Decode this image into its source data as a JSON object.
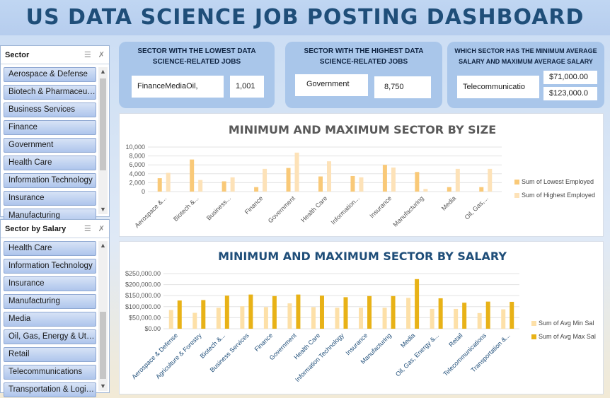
{
  "title": "US DATA SCIENCE JOB POSTING DASHBOARD",
  "slicer_sector": {
    "title": "Sector",
    "icons": [
      "multi-select-icon",
      "clear-filter-icon"
    ],
    "items": [
      "Aerospace & Defense",
      "Biotech & Pharmaceuticals",
      "Business Services",
      "Finance",
      "Government",
      "Health Care",
      "Information Technology",
      "Insurance",
      "Manufacturing"
    ]
  },
  "slicer_salary": {
    "title": "Sector by Salary",
    "icons": [
      "multi-select-icon",
      "clear-filter-icon"
    ],
    "items": [
      "Health Care",
      "Information Technology",
      "Insurance",
      "Manufacturing",
      "Media",
      "Oil, Gas, Energy & Utilities",
      "Retail",
      "Telecommunications",
      "Transportation & Logistics"
    ]
  },
  "kpi_lowest": {
    "title_line1": "SECTOR WITH THE LOWEST DATA",
    "title_line2": "SCIENCE-RELATED JOBS",
    "sector": "FinanceMediaOil,",
    "value": "1,001"
  },
  "kpi_highest": {
    "title_line1": "SECTOR WITH THE HIGHEST DATA",
    "title_line2": "SCIENCE-RELATED JOBS",
    "sector": "Government",
    "value": "8,750"
  },
  "kpi_salary": {
    "title_line1": "WHICH SECTOR HAS THE MINIMUM  AVERAGE",
    "title_line2": "SALARY  AND MAXIMUM  AVERAGE SALARY",
    "sector": "Telecommunicatio",
    "min_value": "$71,000.00",
    "max_value": "$123,000.0"
  },
  "chart_data": [
    {
      "type": "bar",
      "title": "MINIMUM AND MAXIMUM SECTOR BY SIZE",
      "categories": [
        "Aerospace &...",
        "Biotech &...",
        "Business...",
        "Finance",
        "Government",
        "Health Care",
        "Information...",
        "Insurance",
        "Manufacturing",
        "Media",
        "Oil, Gas,..."
      ],
      "series": [
        {
          "name": "Sum of Lowest Employed",
          "color": "#f9c978",
          "values": [
            3000,
            7200,
            2300,
            1000,
            5300,
            3400,
            3500,
            6000,
            4400,
            1000,
            1000
          ]
        },
        {
          "name": "Sum of Highest Employed",
          "color": "#fde2b8",
          "values": [
            4200,
            2600,
            3200,
            5100,
            8750,
            6800,
            3200,
            5400,
            600,
            5100,
            5100
          ]
        }
      ],
      "ylim": [
        0,
        10000
      ],
      "yticks": [
        "0",
        "2,000",
        "4,000",
        "6,000",
        "8,000",
        "10,000"
      ],
      "legend": "right"
    },
    {
      "type": "bar",
      "title": "MINIMUM AND MAXIMUM SECTOR BY SALARY",
      "categories": [
        "Aerospace & Defense",
        "Agriculture & Forestry",
        "Biotech &...",
        "Business Services",
        "Finance",
        "Government",
        "Health Care",
        "Information Technology",
        "Insurance",
        "Manufacturing",
        "Media",
        "Oil, Gas, Energy &...",
        "Retail",
        "Telecommunications",
        "Transportation &..."
      ],
      "series": [
        {
          "name": "Sum of Avg Min Sal",
          "color": "#fde0a8",
          "values": [
            85000,
            72000,
            95000,
            102000,
            98000,
            115000,
            98000,
            95000,
            95000,
            95000,
            140000,
            90000,
            90000,
            71000,
            88000
          ]
        },
        {
          "name": "Sum of Avg Max Sal",
          "color": "#e8b217",
          "values": [
            128000,
            130000,
            150000,
            155000,
            148000,
            155000,
            150000,
            143000,
            148000,
            148000,
            225000,
            138000,
            118000,
            123000,
            122000
          ]
        }
      ],
      "ylim": [
        0,
        250000
      ],
      "yticks": [
        "$0.00",
        "$50,000.00",
        "$100,000.00",
        "$150,000.00",
        "$200,000.00",
        "$250,000.00"
      ],
      "legend": "right"
    }
  ]
}
